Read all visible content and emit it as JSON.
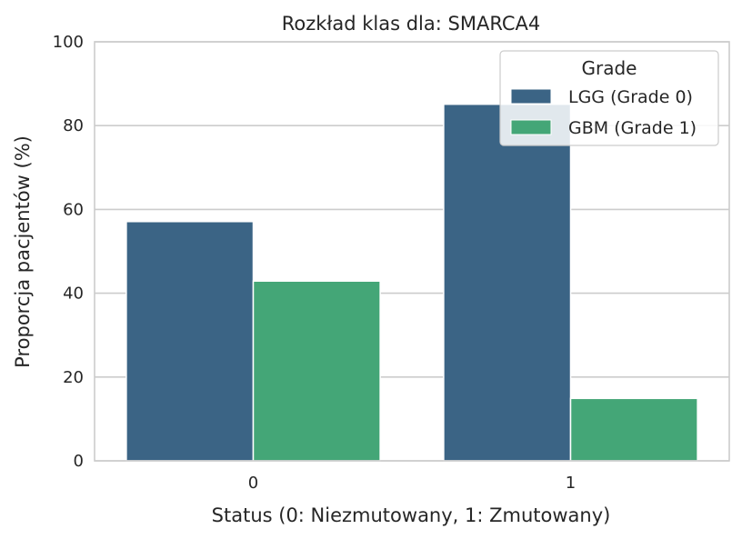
{
  "chart_data": {
    "type": "bar",
    "title": "Rozkład klas dla: SMARCA4",
    "xlabel": "Status (0: Niezmutowany, 1: Zmutowany)",
    "ylabel": "Proporcja pacjentów (%)",
    "categories": [
      "0",
      "1"
    ],
    "ylim": [
      0,
      100
    ],
    "yticks": [
      "0",
      "20",
      "40",
      "60",
      "80",
      "100"
    ],
    "grid": true,
    "legend": {
      "title": "Grade",
      "placement": "top-right"
    },
    "series": [
      {
        "name": "LGG (Grade 0)",
        "color": "#3b6485",
        "values": [
          57.1,
          85.1
        ]
      },
      {
        "name": "GBM (Grade 1)",
        "color": "#44a677",
        "values": [
          42.9,
          14.9
        ]
      }
    ]
  }
}
